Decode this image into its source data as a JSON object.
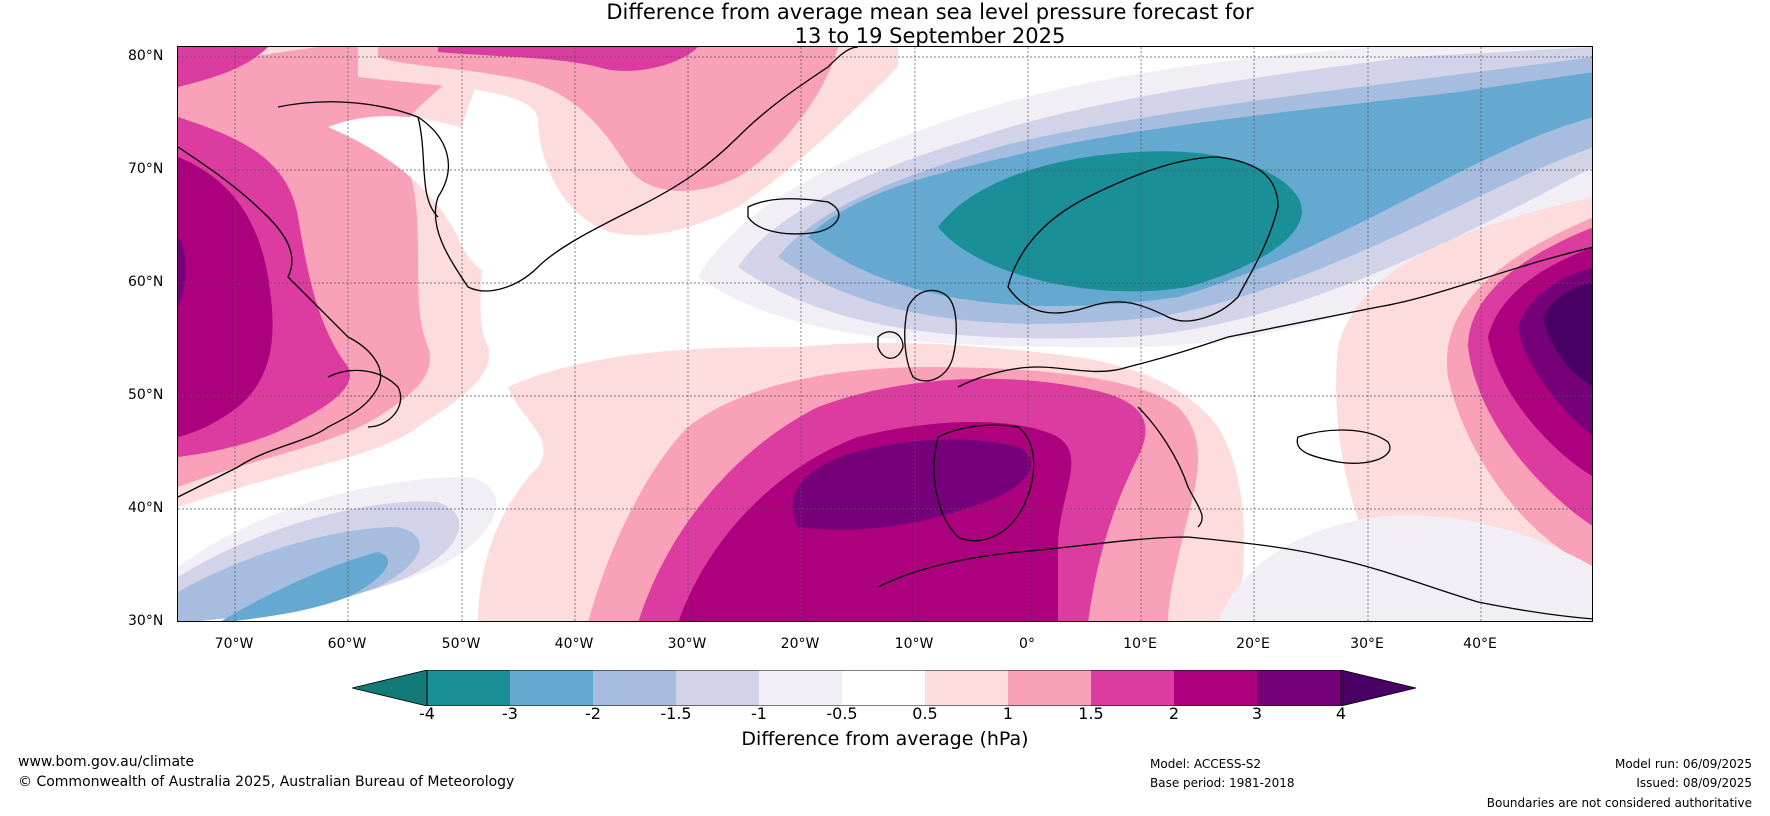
{
  "title": {
    "line1": "Difference from average mean sea level pressure forecast for",
    "line2": "13 to 19 September 2025"
  },
  "map": {
    "lat_labels": [
      "80°N",
      "70°N",
      "60°N",
      "50°N",
      "40°N",
      "30°N"
    ],
    "lon_labels": [
      "70°W",
      "60°W",
      "50°W",
      "40°W",
      "30°W",
      "20°W",
      "10°W",
      "0°",
      "10°E",
      "20°E",
      "30°E",
      "40°E"
    ]
  },
  "colorbar": {
    "ticks": [
      "-4",
      "-3",
      "-2",
      "-1.5",
      "-1",
      "-0.5",
      "0.5",
      "1",
      "1.5",
      "2",
      "3",
      "4"
    ],
    "colors": [
      "#127b77",
      "#1a8f98",
      "#65a9d0",
      "#a7bddf",
      "#d2d3e8",
      "#f1eef6",
      "#ffffff",
      "#fddcdd",
      "#f8a1b8",
      "#dc3b9f",
      "#ad007f",
      "#750079",
      "#490065"
    ],
    "label": "Difference from average (hPa)"
  },
  "footer": {
    "website": "www.bom.gov.au/climate",
    "copyright": "© Commonwealth of Australia 2025, Australian Bureau of Meteorology",
    "model": "Model: ACCESS-S2",
    "base_period": "Base period: 1981-2018",
    "model_run": "Model run: 06/09/2025",
    "issued": "Issued: 08/09/2025",
    "disclaimer": "Boundaries are not considered authoritative"
  }
}
